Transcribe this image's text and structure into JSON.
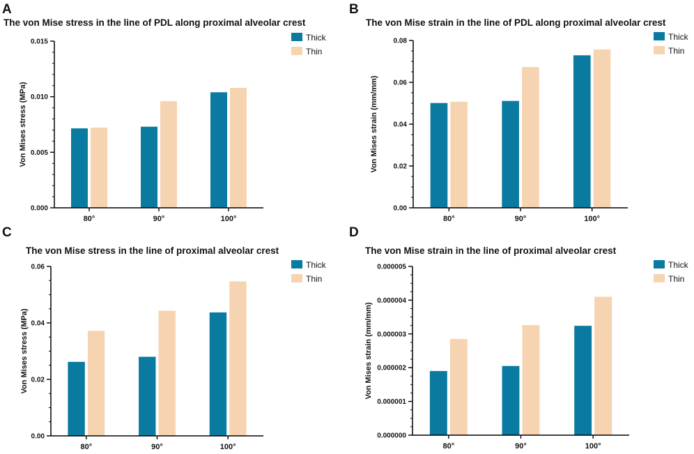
{
  "colors": {
    "thick": "#0b7aa0",
    "thin": "#f7d4b1"
  },
  "chart_data": [
    {
      "type": "bar",
      "letter": "A",
      "title": "The von Mise stress in the line of PDL along proximal alveolar crest",
      "xlabel": "",
      "ylabel": "Von Mises stress (MPa)",
      "categories": [
        "80°",
        "90°",
        "100°"
      ],
      "ylim": [
        0,
        0.015
      ],
      "yticks": [
        0,
        0.005,
        0.01,
        0.015
      ],
      "ytick_labels": [
        "0.000",
        "0.005",
        "0.010",
        "0.015"
      ],
      "minor_per_major": 5,
      "legend_position": "top-right",
      "series": [
        {
          "name": "Thick",
          "values": [
            0.00715,
            0.0073,
            0.0104
          ]
        },
        {
          "name": "Thin",
          "values": [
            0.00722,
            0.0096,
            0.0108
          ]
        }
      ]
    },
    {
      "type": "bar",
      "letter": "B",
      "title": "The von Mise strain in the line of PDL along proximal alveolar crest",
      "xlabel": "",
      "ylabel": "Von Mises strain (mm/mm)",
      "categories": [
        "80°",
        "90°",
        "100°"
      ],
      "ylim": [
        0,
        0.08
      ],
      "yticks": [
        0,
        0.02,
        0.04,
        0.06,
        0.08
      ],
      "ytick_labels": [
        "0.00",
        "0.02",
        "0.04",
        "0.06",
        "0.08"
      ],
      "minor_per_major": 4,
      "legend_position": "top-right",
      "series": [
        {
          "name": "Thick",
          "values": [
            0.0501,
            0.0511,
            0.0729
          ]
        },
        {
          "name": "Thin",
          "values": [
            0.0507,
            0.0673,
            0.0757
          ]
        }
      ]
    },
    {
      "type": "bar",
      "letter": "C",
      "title": "The von Mise stress in the line of proximal alveolar crest",
      "xlabel": "",
      "ylabel": "Von Mises stress (MPa)",
      "categories": [
        "80°",
        "90°",
        "100°"
      ],
      "ylim": [
        0,
        0.06
      ],
      "yticks": [
        0,
        0.02,
        0.04,
        0.06
      ],
      "ytick_labels": [
        "0.00",
        "0.02",
        "0.04",
        "0.06"
      ],
      "minor_per_major": 4,
      "legend_position": "top-right",
      "series": [
        {
          "name": "Thick",
          "values": [
            0.0262,
            0.028,
            0.0437
          ]
        },
        {
          "name": "Thin",
          "values": [
            0.0372,
            0.0443,
            0.0547
          ]
        }
      ]
    },
    {
      "type": "bar",
      "letter": "D",
      "title": "The von Mise strain in the line of proximal alveolar crest",
      "xlabel": "",
      "ylabel": "Von Mises strain (mm/mm)",
      "categories": [
        "80°",
        "90°",
        "100°"
      ],
      "ylim": [
        0,
        5e-06
      ],
      "yticks": [
        0,
        1e-06,
        2e-06,
        3e-06,
        4e-06,
        5e-06
      ],
      "ytick_labels": [
        "0.000000",
        "0.000001",
        "0.000002",
        "0.000003",
        "0.000004",
        "0.000005"
      ],
      "minor_per_major": 4,
      "legend_position": "top-right",
      "series": [
        {
          "name": "Thick",
          "values": [
            1.9e-06,
            2.05e-06,
            3.24e-06
          ]
        },
        {
          "name": "Thin",
          "values": [
            2.85e-06,
            3.26e-06,
            4.1e-06
          ]
        }
      ]
    }
  ]
}
